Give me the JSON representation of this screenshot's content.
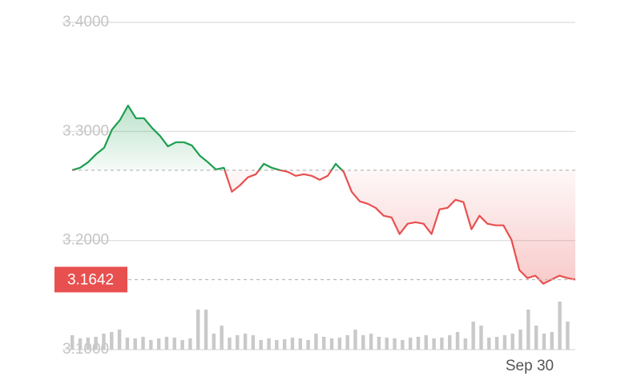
{
  "chart_data": {
    "type": "line",
    "ylim": [
      3.1,
      3.4
    ],
    "yticks": [
      {
        "value": 3.4,
        "label": "3.4000"
      },
      {
        "value": 3.3,
        "label": "3.3000"
      },
      {
        "value": 3.2,
        "label": "3.2000"
      },
      {
        "value": 3.1,
        "label": "3.1000"
      }
    ],
    "grid": true,
    "x_label": "Sep 30",
    "previous_close": 3.2645,
    "current_value": 3.1642,
    "up_color": "#1d9e4f",
    "down_color": "#e8504f",
    "values": [
      3.2645,
      3.2667,
      3.2718,
      3.2791,
      3.285,
      3.3018,
      3.3106,
      3.3238,
      3.3121,
      3.3121,
      3.3033,
      3.296,
      3.2864,
      3.2901,
      3.2901,
      3.2872,
      3.2777,
      3.2718,
      3.2652,
      3.2667,
      3.2447,
      3.2505,
      3.2579,
      3.2608,
      3.2703,
      3.2667,
      3.2645,
      3.263,
      3.2593,
      3.2608,
      3.2593,
      3.2557,
      3.2593,
      3.2703,
      3.263,
      3.2447,
      3.2359,
      3.2337,
      3.23,
      3.2227,
      3.2212,
      3.2059,
      3.2154,
      3.2168,
      3.2154,
      3.2059,
      3.2286,
      3.23,
      3.2374,
      3.2352,
      3.2103,
      3.2227,
      3.2154,
      3.2139,
      3.2139,
      3.2007,
      3.1729,
      3.1656,
      3.1678,
      3.1604,
      3.1641,
      3.1678,
      3.1656,
      3.1642
    ],
    "volume": [
      18,
      14,
      15,
      16,
      20,
      22,
      25,
      15,
      14,
      16,
      12,
      14,
      16,
      15,
      12,
      14,
      50,
      50,
      20,
      30,
      15,
      18,
      20,
      18,
      12,
      14,
      12,
      13,
      15,
      14,
      12,
      20,
      16,
      14,
      15,
      18,
      25,
      18,
      20,
      16,
      15,
      14,
      12,
      15,
      16,
      18,
      14,
      15,
      18,
      22,
      14,
      35,
      30,
      15,
      16,
      18,
      20,
      25,
      50,
      30,
      20,
      22,
      60,
      35
    ]
  }
}
